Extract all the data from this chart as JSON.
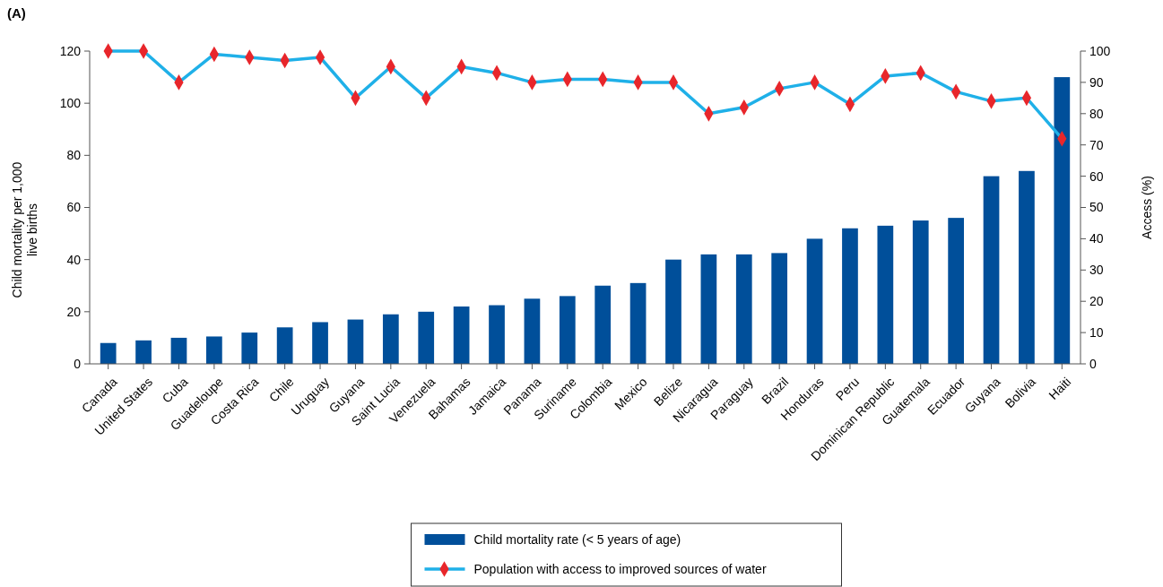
{
  "chart_data": {
    "type": "bar",
    "title": "(A)",
    "ylabel": "Child mortality per 1,000 live births",
    "y2label": "Access (%)",
    "categories": [
      "Canada",
      "United States",
      "Cuba",
      "Guadeloupe",
      "Costa Rica",
      "Chile",
      "Uruguay",
      "Guyana",
      "Saint Lucia",
      "Venezuela",
      "Bahamas",
      "Jamaica",
      "Panama",
      "Suriname",
      "Colombia",
      "Mexico",
      "Belize",
      "Nicaragua",
      "Paraguay",
      "Brazil",
      "Honduras",
      "Peru",
      "Dominican Republic",
      "Guatemala",
      "Ecuador",
      "Guyana",
      "Bolivia",
      "Haiti"
    ],
    "series": [
      {
        "name": "Child mortality rate (< 5 years of age)",
        "color": "#004f9a",
        "values": [
          8,
          9,
          10,
          10.5,
          12,
          14,
          16,
          17,
          19,
          20,
          22,
          22.5,
          25,
          26,
          30,
          31,
          40,
          42,
          42,
          42.5,
          48,
          52,
          53,
          55,
          56,
          72,
          74,
          110
        ]
      },
      {
        "name": "Population with access to improved sources of water",
        "type": "line",
        "axis": "y2",
        "color": "#1fb0e8",
        "marker": "diamond",
        "values": [
          100,
          100,
          90,
          99,
          98,
          97,
          98,
          85,
          95,
          85,
          95,
          93,
          90,
          91,
          91,
          90,
          90,
          80,
          82,
          88,
          90,
          83,
          92,
          93,
          87,
          84,
          85,
          72
        ]
      }
    ],
    "ylim": [
      0,
      120
    ],
    "yticks": [
      0,
      20,
      40,
      60,
      80,
      100,
      120
    ],
    "y2lim": [
      0,
      100
    ],
    "y2ticks": [
      0,
      10,
      20,
      30,
      40,
      50,
      60,
      70,
      80,
      90,
      100
    ],
    "legend": "bottom",
    "grid": false
  }
}
